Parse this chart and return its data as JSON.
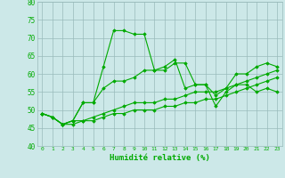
{
  "x": [
    0,
    1,
    2,
    3,
    4,
    5,
    6,
    7,
    8,
    9,
    10,
    11,
    12,
    13,
    14,
    15,
    16,
    17,
    18,
    19,
    20,
    21,
    22,
    23
  ],
  "line1": [
    49,
    48,
    46,
    47,
    52,
    52,
    62,
    72,
    72,
    71,
    71,
    61,
    61,
    63,
    63,
    57,
    57,
    54,
    56,
    60,
    60,
    62,
    63,
    62
  ],
  "line2": [
    49,
    48,
    46,
    47,
    52,
    52,
    56,
    58,
    58,
    59,
    61,
    61,
    62,
    64,
    56,
    57,
    57,
    51,
    55,
    57,
    57,
    55,
    56,
    55
  ],
  "line3": [
    49,
    48,
    46,
    47,
    47,
    48,
    49,
    50,
    51,
    52,
    52,
    52,
    53,
    53,
    54,
    55,
    55,
    55,
    56,
    57,
    58,
    59,
    60,
    61
  ],
  "line4": [
    49,
    48,
    46,
    46,
    47,
    47,
    48,
    49,
    49,
    50,
    50,
    50,
    51,
    51,
    52,
    52,
    53,
    53,
    54,
    55,
    56,
    57,
    58,
    59
  ],
  "line_color": "#00aa00",
  "bg_color": "#cce8e8",
  "grid_color": "#99bbbb",
  "xlabel": "Humidité relative (%)",
  "ylim": [
    40,
    80
  ],
  "xlim": [
    -0.5,
    23.5
  ],
  "yticks": [
    40,
    45,
    50,
    55,
    60,
    65,
    70,
    75,
    80
  ],
  "marker": "D",
  "marker_size": 1.8,
  "line_width": 0.8
}
